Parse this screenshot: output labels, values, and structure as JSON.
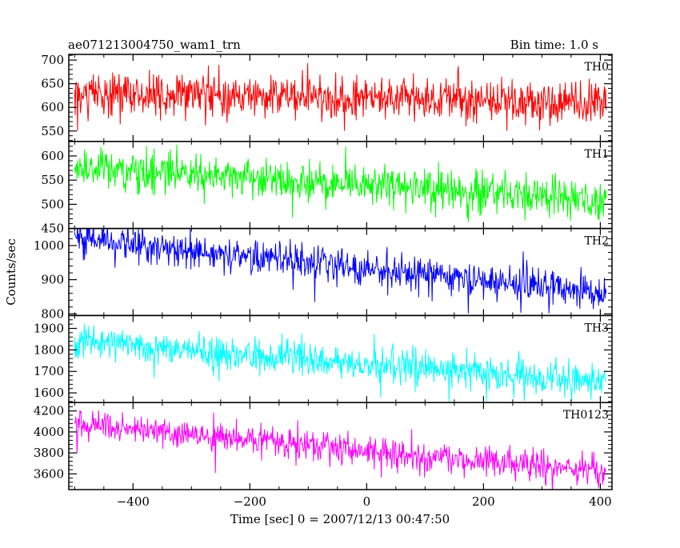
{
  "header": {
    "left": "ae071213004750_wam1_trn",
    "right": "Bin time: 1.0 s"
  },
  "chart_data": {
    "type": "line",
    "x_range": [
      -510,
      420
    ],
    "xlabel": "Time [sec] 0 = 2007/12/13 00:47:50",
    "ylabel": "Counts/sec",
    "x_ticks": [
      -400,
      -200,
      0,
      200,
      400
    ],
    "x_tick_labels": [
      "−400",
      "−200",
      "0",
      "200",
      "400"
    ],
    "data_x_range": [
      -500,
      410
    ],
    "bin_time": 1.0,
    "panels": [
      {
        "name": "TH0",
        "color": "#ff0000",
        "ylim": [
          528,
          712
        ],
        "yticks": [
          550,
          600,
          650,
          700
        ],
        "trend": {
          "start": 630,
          "end": 610
        },
        "noise_sd": 22,
        "spike_sd": 30
      },
      {
        "name": "TH1",
        "color": "#00ff00",
        "ylim": [
          450,
          630
        ],
        "yticks": [
          450,
          500,
          550,
          600
        ],
        "trend": {
          "start": 575,
          "end": 510
        },
        "noise_sd": 20,
        "spike_sd": 28
      },
      {
        "name": "TH2",
        "color": "#0000ff",
        "ylim": [
          795,
          1050
        ],
        "yticks": [
          800,
          900,
          1000
        ],
        "trend": {
          "start": 1020,
          "end": 860
        },
        "noise_sd": 25,
        "spike_sd": 35
      },
      {
        "name": "TH3",
        "color": "#00ffff",
        "ylim": [
          1555,
          1960
        ],
        "yticks": [
          1600,
          1700,
          1800,
          1900
        ],
        "trend": {
          "start": 1840,
          "end": 1650
        },
        "noise_sd": 40,
        "spike_sd": 55
      },
      {
        "name": "TH0123",
        "color": "#ff00ff",
        "ylim": [
          3450,
          4280
        ],
        "yticks": [
          3600,
          3800,
          4000,
          4200
        ],
        "trend": {
          "start": 4070,
          "end": 3620
        },
        "noise_sd": 70,
        "spike_sd": 100
      }
    ]
  }
}
